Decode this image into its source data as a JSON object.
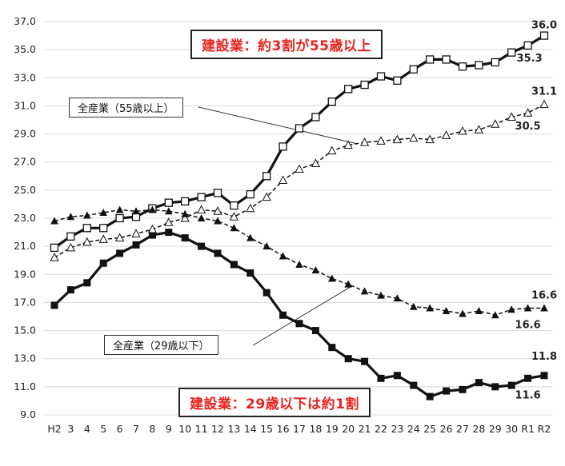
{
  "chart_data": {
    "type": "line",
    "categories": [
      "H2",
      "3",
      "4",
      "5",
      "6",
      "7",
      "8",
      "9",
      "10",
      "11",
      "12",
      "13",
      "14",
      "15",
      "16",
      "17",
      "18",
      "19",
      "20",
      "21",
      "22",
      "23",
      "24",
      "25",
      "26",
      "27",
      "28",
      "29",
      "30",
      "R1",
      "R2"
    ],
    "ylim": [
      9.0,
      37.0
    ],
    "yticks": [
      "9.0",
      "11.0",
      "13.0",
      "15.0",
      "17.0",
      "19.0",
      "21.0",
      "23.0",
      "25.0",
      "27.0",
      "29.0",
      "31.0",
      "33.0",
      "35.0",
      "37.0"
    ],
    "grid": "horizontal",
    "series": [
      {
        "key": "cons55",
        "style": "solid",
        "marker": "open-square",
        "values": [
          20.9,
          21.7,
          22.3,
          22.3,
          23.0,
          23.1,
          23.7,
          24.1,
          24.2,
          24.5,
          24.8,
          23.9,
          24.7,
          26.0,
          28.1,
          29.4,
          30.2,
          31.3,
          32.2,
          32.5,
          33.1,
          32.8,
          33.6,
          34.3,
          34.3,
          33.8,
          33.9,
          34.1,
          34.8,
          35.3,
          36.0
        ]
      },
      {
        "key": "cons29",
        "style": "solid",
        "marker": "filled-square",
        "values": [
          16.8,
          17.9,
          18.4,
          19.8,
          20.5,
          21.1,
          21.8,
          22.0,
          21.6,
          21.0,
          20.5,
          19.7,
          19.1,
          17.7,
          16.1,
          15.5,
          15.0,
          13.8,
          13.0,
          12.8,
          11.6,
          11.8,
          11.1,
          10.3,
          10.7,
          10.8,
          11.3,
          11.0,
          11.1,
          11.6,
          11.8
        ]
      },
      {
        "key": "all55",
        "style": "dashed",
        "marker": "open-triangle",
        "values": [
          20.2,
          20.9,
          21.3,
          21.5,
          21.6,
          21.9,
          22.2,
          22.7,
          23.0,
          23.6,
          23.5,
          23.1,
          23.7,
          24.5,
          25.7,
          26.5,
          26.9,
          27.8,
          28.2,
          28.4,
          28.5,
          28.6,
          28.7,
          28.6,
          28.9,
          29.2,
          29.3,
          29.7,
          30.2,
          30.5,
          31.1
        ]
      },
      {
        "key": "all29",
        "style": "dashed",
        "marker": "filled-triangle",
        "values": [
          22.8,
          23.1,
          23.2,
          23.4,
          23.6,
          23.5,
          23.6,
          23.5,
          23.3,
          23.0,
          22.8,
          22.3,
          21.6,
          21.0,
          20.3,
          19.7,
          19.3,
          18.7,
          18.3,
          17.8,
          17.5,
          17.3,
          16.7,
          16.6,
          16.4,
          16.2,
          16.4,
          16.1,
          16.5,
          16.6,
          16.6
        ]
      }
    ],
    "data_labels": [
      {
        "text": "36.0",
        "series": "cons55",
        "index": 30
      },
      {
        "text": "35.3",
        "series": "cons55",
        "index": 29
      },
      {
        "text": "31.1",
        "series": "all55",
        "index": 30
      },
      {
        "text": "30.5",
        "series": "all55",
        "index": 29
      },
      {
        "text": "16.6",
        "series": "all29",
        "index": 30
      },
      {
        "text": "16.6",
        "series": "all29",
        "index": 29
      },
      {
        "text": "11.8",
        "series": "cons29",
        "index": 30
      },
      {
        "text": "11.6",
        "series": "cons29",
        "index": 29
      }
    ],
    "annotations": {
      "cons55_title": "建設業：約3割が55歳以上",
      "cons29_title": "建設業：29歳以下は約1割",
      "all55_label": "全産業（55歳以上）",
      "all29_label": "全産業（29歳以下）"
    },
    "colors": {
      "line": "#111111",
      "accent": "#e8231f",
      "grid": "#d9d9d9"
    }
  }
}
